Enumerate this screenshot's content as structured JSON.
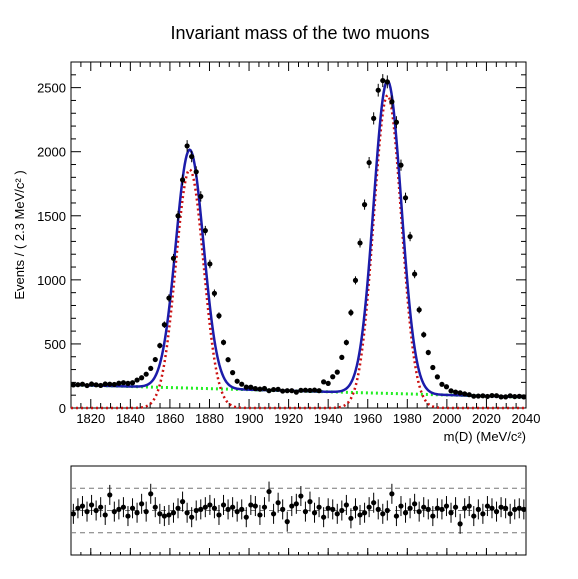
{
  "chart_data": [
    {
      "type": "scatter",
      "title": "Invariant mass of the two muons",
      "xlabel": "m(D) (MeV/c²)",
      "ylabel": "Events / ( 2.3 MeV/c² )",
      "xlim": [
        1810,
        2040
      ],
      "ylim": [
        0,
        2700
      ],
      "xticks": [
        1820,
        1840,
        1860,
        1880,
        1900,
        1920,
        1940,
        1960,
        1980,
        2000,
        2020,
        2040
      ],
      "yticks": [
        0,
        500,
        1000,
        1500,
        2000,
        2500
      ],
      "grid": false,
      "legend": "none",
      "colors": {
        "data": "#000000",
        "total_fit": "#1c1caa",
        "signal": "#cc1111",
        "background": "#22ee22"
      },
      "model": {
        "peaks": [
          {
            "mean": 1870,
            "sigma": 7.0,
            "height": 1860
          },
          {
            "mean": 1970,
            "sigma": 7.0,
            "height": 2440
          }
        ],
        "background": {
          "x": [
            1810,
            2040
          ],
          "y": [
            180,
            85
          ]
        }
      },
      "series": [
        {
          "name": "",
          "x": [
            1811.2,
            1813.5,
            1815.8,
            1818.1,
            1820.4,
            1822.7,
            1825,
            1827.3,
            1829.6,
            1831.9,
            1834.2,
            1836.5,
            1838.8,
            1841.1,
            1843.4,
            1845.7,
            1848,
            1850.3,
            1852.6,
            1854.9,
            1857.2,
            1859.5,
            1861.8,
            1864.1,
            1866.4,
            1868.7,
            1871,
            1873.3,
            1875.6,
            1877.9,
            1880.2,
            1882.5,
            1884.8,
            1887.1,
            1889.4,
            1891.7,
            1894,
            1896.3,
            1898.6,
            1900.9,
            1903.2,
            1905.5,
            1907.8,
            1910.1,
            1912.4,
            1914.7,
            1917,
            1919.3,
            1921.6,
            1923.9,
            1926.2,
            1928.5,
            1930.8,
            1933.1,
            1935.4,
            1937.7,
            1940,
            1942.3,
            1944.6,
            1946.9,
            1949.2,
            1951.5,
            1953.8,
            1956.1,
            1958.4,
            1960.7,
            1963,
            1965.3,
            1967.6,
            1969.9,
            1972.2,
            1974.5,
            1976.8,
            1979.1,
            1981.4,
            1983.7,
            1986,
            1988.3,
            1990.6,
            1992.9,
            1995.2,
            1997.5,
            1999.8,
            2002.1,
            2004.4,
            2006.7,
            2009,
            2011.3,
            2013.6,
            2015.9,
            2018.2,
            2020.5,
            2022.8,
            2025.1,
            2027.4,
            2029.7,
            2032,
            2034.3,
            2036.6,
            2038.9
          ],
          "y": [
            180,
            182,
            186,
            175,
            187,
            181,
            176,
            187,
            186,
            184,
            193,
            197,
            192,
            197,
            218,
            236,
            264,
            309,
            378,
            487,
            650,
            858,
            1168,
            1500,
            1780,
            2045,
            1962,
            1843,
            1651,
            1384,
            1124,
            895,
            720,
            512,
            377,
            276,
            209,
            186,
            163,
            162,
            151,
            147,
            152,
            135,
            144,
            146,
            132,
            135,
            135,
            124,
            138,
            139,
            137,
            140,
            135,
            204,
            192,
            244,
            280,
            395,
            511,
            744,
            996,
            1288,
            1587,
            1915,
            2260,
            2480,
            2555,
            2545,
            2390,
            2230,
            1895,
            1640,
            1338,
            1045,
            766,
            572,
            433,
            316,
            243,
            185,
            166,
            134,
            124,
            118,
            110,
            104,
            92,
            93,
            95,
            90,
            97,
            96,
            87,
            87,
            95,
            89,
            91,
            87
          ]
        }
      ]
    },
    {
      "type": "scatter",
      "title": "",
      "xlabel": "",
      "ylabel": "",
      "grid": false,
      "legend": "none",
      "ylim": [
        -4,
        4
      ],
      "reference_lines": [
        -2,
        0,
        2
      ],
      "series": [
        {
          "name": "",
          "values": [
            -0.3,
            0.2,
            0.4,
            -0.1,
            0.5,
            0,
            0.3,
            -0.4,
            1.4,
            -0.1,
            0.1,
            0.3,
            -0.5,
            0.2,
            -0.2,
            0.6,
            -0.1,
            1.5,
            0.3,
            -0.3,
            -0.5,
            -0.4,
            -0.2,
            0.2,
            0.8,
            -0.2,
            -0.6,
            0,
            0.1,
            0.3,
            0.5,
            0.2,
            -0.4,
            0.5,
            0.1,
            0.3,
            -0.1,
            0.1,
            -0.6,
            0.5,
            0.4,
            -0.4,
            0.3,
            1.7,
            -0.3,
            0.7,
            0.1,
            -1,
            0.4,
            0.6,
            1.3,
            -0.1,
            0.8,
            -0.2,
            0.3,
            -0.6,
            0.2,
            0.1,
            -0.3,
            0,
            0.5,
            -0.7,
            0.2,
            -0.4,
            -0.2,
            0.3,
            0.7,
            0.1,
            -0.3,
            0,
            1.5,
            -0.5,
            0.4,
            -0.2,
            0.2,
            0.6,
            -0.1,
            0.3,
            0.1,
            -0.5,
            0.2,
            0.1,
            0.4,
            -0.2,
            0.3,
            -1.2,
            0.2,
            0.4,
            -0.5,
            0.1,
            -0.3,
            0.4,
            0.2,
            -0.1,
            0.3,
            0.2,
            -0.3,
            0.1,
            0.2,
            0.1
          ]
        }
      ]
    }
  ]
}
